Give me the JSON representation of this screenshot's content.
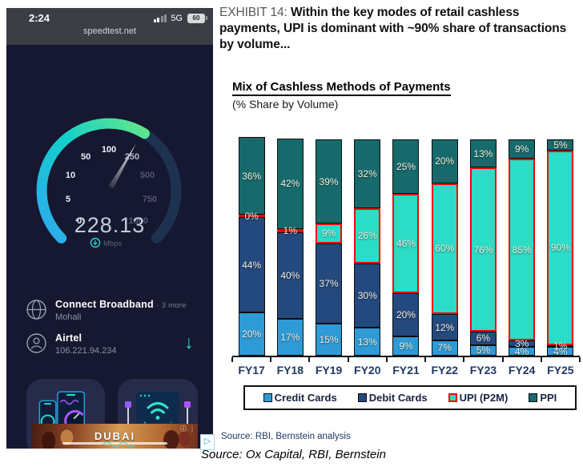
{
  "phone": {
    "status_bar": {
      "time": "2:24",
      "network": "5G",
      "battery_percent": "60"
    },
    "url_bar": {
      "url": "speedtest.net"
    },
    "gauge": {
      "tick_labels": [
        "0",
        "5",
        "10",
        "50",
        "100",
        "250",
        "500",
        "750",
        "1000"
      ],
      "value": "228.13",
      "unit": "Mbps"
    },
    "connections": [
      {
        "name": "Connect Broadband",
        "extra": "· 3 more",
        "detail": "Mohali"
      },
      {
        "name": "Airtel",
        "extra": "",
        "detail": "106.221.94.234"
      }
    ],
    "download_arrow": "↓",
    "ad": {
      "title": "DUBAI",
      "info_icon": "ⓘ",
      "menu_icon": "⋮",
      "adchoices_icon": "▷"
    }
  },
  "exhibit": {
    "label": "EXHIBIT 14: ",
    "title": "Within the key modes of retail cashless payments, UPI is dominant with ~90% share of transactions by volume...",
    "source": "Source: RBI, Bernstein analysis"
  },
  "chart_data": {
    "type": "bar",
    "stacked": true,
    "title": "Mix of Cashless Methods of Payments",
    "subtitle": "(% Share by Volume)",
    "categories": [
      "FY17",
      "FY18",
      "FY19",
      "FY20",
      "FY21",
      "FY22",
      "FY23",
      "FY24",
      "FY25"
    ],
    "series": [
      {
        "name": "Credit Cards",
        "color": "#2E9AD6",
        "values": [
          20,
          17,
          15,
          13,
          9,
          7,
          5,
          4,
          4
        ]
      },
      {
        "name": "Debit Cards",
        "color": "#24497E",
        "values": [
          44,
          40,
          37,
          30,
          20,
          12,
          6,
          3,
          1
        ]
      },
      {
        "name": "UPI (P2M)",
        "color": "#2BDCC6",
        "border": "#fb0006",
        "values": [
          0,
          1,
          9,
          26,
          46,
          60,
          76,
          85,
          90
        ]
      },
      {
        "name": "PPI",
        "color": "#176A6C",
        "values": [
          36,
          42,
          39,
          32,
          25,
          20,
          13,
          9,
          5
        ]
      }
    ],
    "ylim": [
      0,
      100
    ],
    "unit": "%",
    "grid": false,
    "legend_position": "bottom"
  },
  "footer": {
    "source": "Source: Ox Capital, RBI, Bernstein"
  }
}
